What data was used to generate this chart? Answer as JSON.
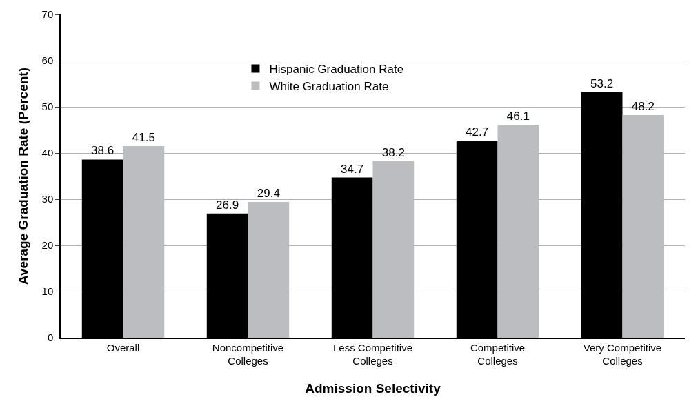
{
  "chart_data": {
    "type": "bar",
    "xlabel": "Admission Selectivity",
    "ylabel": "Average Graduation Rate (Percent)",
    "categories": [
      "Overall",
      "Noncompetitive\nColleges",
      "Less Competitive\nColleges",
      "Competitive\nColleges",
      "Very Competitive\nColleges"
    ],
    "series": [
      {
        "name": "Hispanic Graduation Rate",
        "color": "#000000",
        "values": [
          38.6,
          26.9,
          34.7,
          42.7,
          53.2
        ]
      },
      {
        "name": "White Graduation Rate",
        "color": "#bcbdc0",
        "values": [
          41.5,
          29.4,
          38.2,
          46.1,
          48.2
        ]
      }
    ],
    "ylim": [
      0,
      70
    ],
    "yticks": [
      0,
      10,
      20,
      30,
      40,
      50,
      60,
      70
    ],
    "grid": "y",
    "legend": "top",
    "data_labels": true
  }
}
